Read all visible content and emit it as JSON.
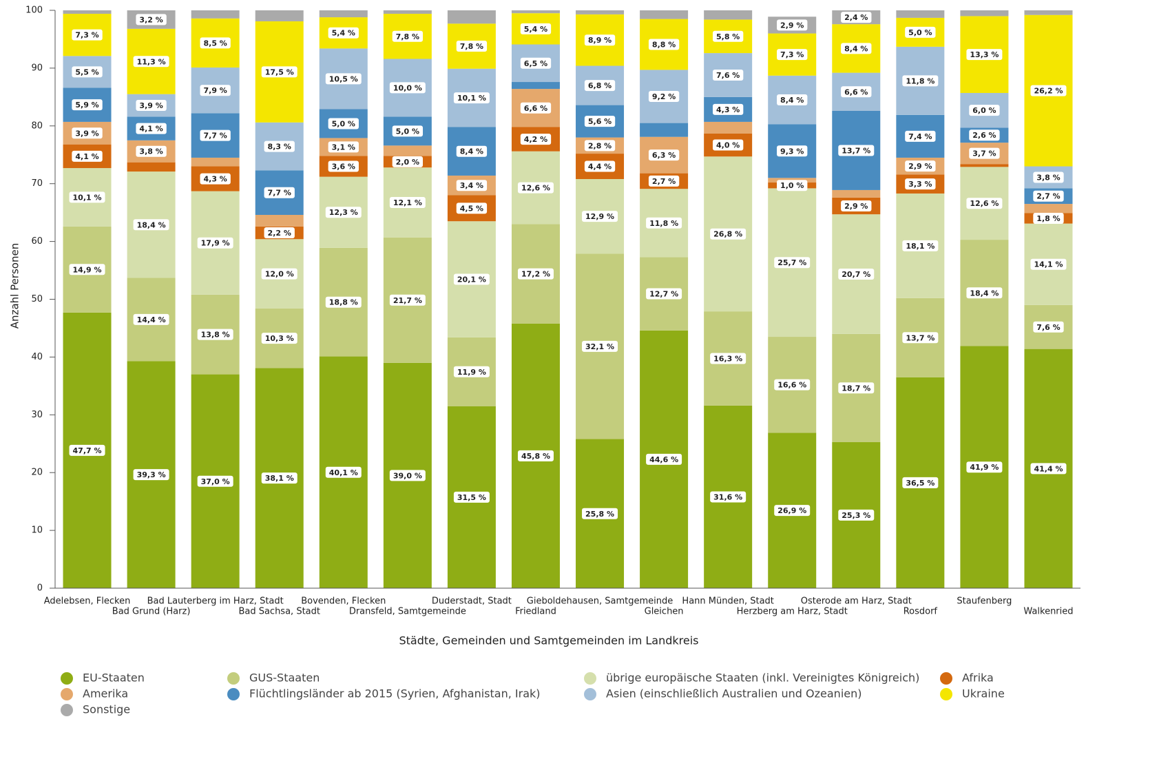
{
  "chart_data": {
    "type": "stacked_bar",
    "y_axis_label": "Anzahl Personen",
    "x_axis_label": "Städte, Gemeinden und Samtgemeinden im Landkreis",
    "categories": [
      "Adelebsen, Flecken",
      "Bad Grund (Harz)",
      "Bad Lauterberg im Harz, Stadt",
      "Bad Sachsa, Stadt",
      "Bovenden, Flecken",
      "Dransfeld, Samtgemeinde",
      "Duderstadt, Stadt",
      "Friedland",
      "Gieboldehausen, Samtgemeinde",
      "Gleichen",
      "Hann Münden, Stadt",
      "Herzberg am Harz, Stadt",
      "Osterode am Harz, Stadt",
      "Rosdorf",
      "Staufenberg",
      "Walkenried"
    ],
    "ylim": [
      0,
      100
    ],
    "yticks": [
      0,
      10,
      20,
      30,
      40,
      50,
      60,
      70,
      80,
      90,
      100
    ],
    "grid": false,
    "series": [
      {
        "name": "EU-Staaten",
        "color": "#8fad15",
        "values": [
          47.7,
          39.3,
          37.0,
          38.1,
          40.1,
          39.0,
          31.5,
          45.8,
          25.8,
          44.6,
          31.6,
          26.9,
          25.3,
          36.5,
          41.9,
          41.4
        ],
        "value_labels": [
          "47,7 %",
          "39,3 %",
          "37,0 %",
          "38,1 %",
          "40,1 %",
          "39,0 %",
          "31,5 %",
          "45,8 %",
          "25,8 %",
          "44,6 %",
          "31,6 %",
          "26,9 %",
          "25,3 %",
          "36,5 %",
          "41,9 %",
          "41,4 %"
        ]
      },
      {
        "name": "GUS-Staaten",
        "color": "#c3cd7d",
        "values": [
          14.9,
          14.4,
          13.8,
          10.3,
          18.8,
          21.7,
          11.9,
          17.2,
          32.1,
          12.7,
          16.3,
          16.6,
          18.7,
          13.7,
          18.4,
          7.6
        ],
        "value_labels": [
          "14,9 %",
          "14,4 %",
          "13,8 %",
          "10,3 %",
          "18,8 %",
          "21,7 %",
          "11,9 %",
          "17,2 %",
          "32,1 %",
          "12,7 %",
          "16,3 %",
          "16,6 %",
          "18,7 %",
          "13,7 %",
          "18,4 %",
          "7,6 %"
        ]
      },
      {
        "name": "übrige europäische Staaten (inkl. Vereinigtes Königreich)",
        "color": "#d5dfac",
        "values": [
          10.1,
          18.4,
          17.9,
          12.0,
          12.3,
          12.1,
          20.1,
          12.6,
          12.9,
          11.8,
          26.8,
          25.7,
          20.7,
          18.1,
          12.6,
          14.1
        ],
        "value_labels": [
          "10,1 %",
          "18,4 %",
          "17,9 %",
          "12,0 %",
          "12,3 %",
          "12,1 %",
          "20,1 %",
          "12,6 %",
          "12,9 %",
          "11,8 %",
          "26,8 %",
          "25,7 %",
          "20,7 %",
          "18,1 %",
          "12,6 %",
          "14,1 %"
        ]
      },
      {
        "name": "Afrika",
        "color": "#d4690f",
        "values": [
          4.1,
          1.6,
          4.3,
          2.2,
          3.6,
          2.0,
          4.5,
          4.2,
          4.4,
          2.7,
          4.0,
          1.0,
          2.9,
          3.3,
          0.5,
          1.8
        ],
        "value_labels": [
          "4,1 %",
          null,
          "4,3 %",
          "2,2 %",
          "3,6 %",
          "2,0 %",
          "4,5 %",
          "4,2 %",
          "4,4 %",
          "2,7 %",
          "4,0 %",
          "1,0 %",
          "2,9 %",
          "3,3 %",
          null,
          "1,8 %"
        ]
      },
      {
        "name": "Amerika",
        "color": "#e5a86c",
        "values": [
          3.9,
          3.8,
          1.5,
          2.0,
          3.1,
          1.8,
          3.4,
          6.6,
          2.8,
          6.3,
          2.0,
          0.8,
          1.3,
          2.9,
          3.7,
          1.6
        ],
        "value_labels": [
          "3,9 %",
          "3,8 %",
          null,
          null,
          "3,1 %",
          null,
          "3,4 %",
          "6,6 %",
          "2,8 %",
          "6,3 %",
          null,
          null,
          null,
          "2,9 %",
          "3,7 %",
          null
        ]
      },
      {
        "name": "Flüchtlingsländer ab 2015 (Syrien, Afghanistan, Irak)",
        "color": "#4a8cc0",
        "values": [
          5.9,
          4.1,
          7.7,
          7.7,
          5.0,
          5.0,
          8.4,
          1.2,
          5.6,
          2.4,
          4.3,
          9.3,
          13.7,
          7.4,
          2.6,
          2.7
        ],
        "value_labels": [
          "5,9 %",
          "4,1 %",
          "7,7 %",
          "7,7 %",
          "5,0 %",
          "5,0 %",
          "8,4 %",
          null,
          "5,6 %",
          null,
          "4,3 %",
          "9,3 %",
          "13,7 %",
          "7,4 %",
          "2,6 %",
          "2,7 %"
        ]
      },
      {
        "name": "Asien (einschließlich Australien und Ozeanien)",
        "color": "#a3bfd9",
        "values": [
          5.5,
          3.9,
          7.9,
          8.3,
          10.5,
          10.0,
          10.1,
          6.5,
          6.8,
          9.2,
          7.6,
          8.4,
          6.6,
          11.8,
          6.0,
          3.8
        ],
        "value_labels": [
          "5,5 %",
          "3,9 %",
          "7,9 %",
          "8,3 %",
          "10,5 %",
          "10,0 %",
          "10,1 %",
          "6,5 %",
          "6,8 %",
          "9,2 %",
          "7,6 %",
          "8,4 %",
          "6,6 %",
          "11,8 %",
          "6,0 %",
          "3,8 %"
        ]
      },
      {
        "name": "Ukraine",
        "color": "#f4e600",
        "values": [
          7.3,
          11.3,
          8.5,
          17.5,
          5.4,
          7.8,
          7.8,
          5.4,
          8.9,
          8.8,
          5.8,
          7.3,
          8.4,
          5.0,
          13.3,
          26.2
        ],
        "value_labels": [
          "7,3 %",
          "11,3 %",
          "8,5 %",
          "17,5 %",
          "5,4 %",
          "7,8 %",
          "7,8 %",
          "5,4 %",
          "8,9 %",
          "8,8 %",
          "5,8 %",
          "7,3 %",
          "8,4 %",
          "5,0 %",
          "13,3 %",
          "26,2 %"
        ]
      },
      {
        "name": "Sonstige",
        "color": "#aaaaaa",
        "values": [
          0.6,
          3.2,
          1.4,
          1.9,
          1.2,
          0.6,
          2.3,
          0.5,
          0.7,
          1.5,
          1.6,
          2.9,
          2.4,
          1.3,
          1.0,
          0.8
        ],
        "value_labels": [
          null,
          "3,2 %",
          null,
          null,
          null,
          null,
          null,
          null,
          null,
          null,
          null,
          "2,9 %",
          "2,4 %",
          null,
          null,
          null
        ]
      }
    ]
  }
}
